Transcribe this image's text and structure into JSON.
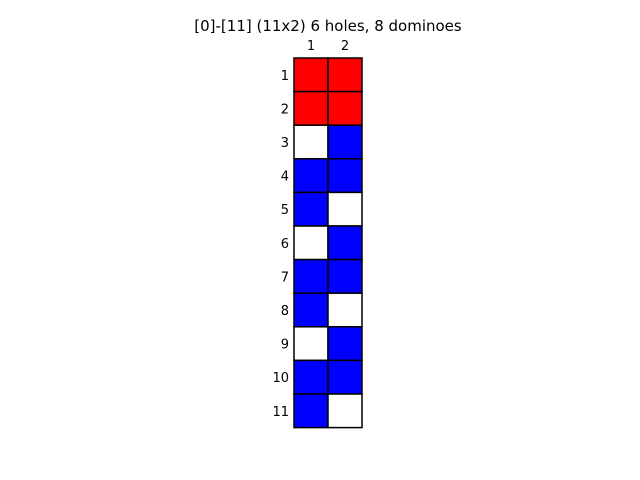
{
  "title": "[0]-[11]  (11x2) 6 holes, 8 dominoes",
  "grid": {
    "rows": 11,
    "cols": 2,
    "col_labels": [
      "1",
      "2"
    ],
    "row_labels": [
      "1",
      "2",
      "3",
      "4",
      "5",
      "6",
      "7",
      "8",
      "9",
      "10",
      "11"
    ],
    "colors": {
      "R": "#ff0000",
      "B": "#0000ff",
      "W": "#ffffff"
    },
    "cells": [
      [
        "R",
        "R"
      ],
      [
        "R",
        "R"
      ],
      [
        "W",
        "B"
      ],
      [
        "B",
        "B"
      ],
      [
        "B",
        "W"
      ],
      [
        "W",
        "B"
      ],
      [
        "B",
        "B"
      ],
      [
        "B",
        "W"
      ],
      [
        "W",
        "B"
      ],
      [
        "B",
        "B"
      ],
      [
        "B",
        "W"
      ]
    ]
  }
}
